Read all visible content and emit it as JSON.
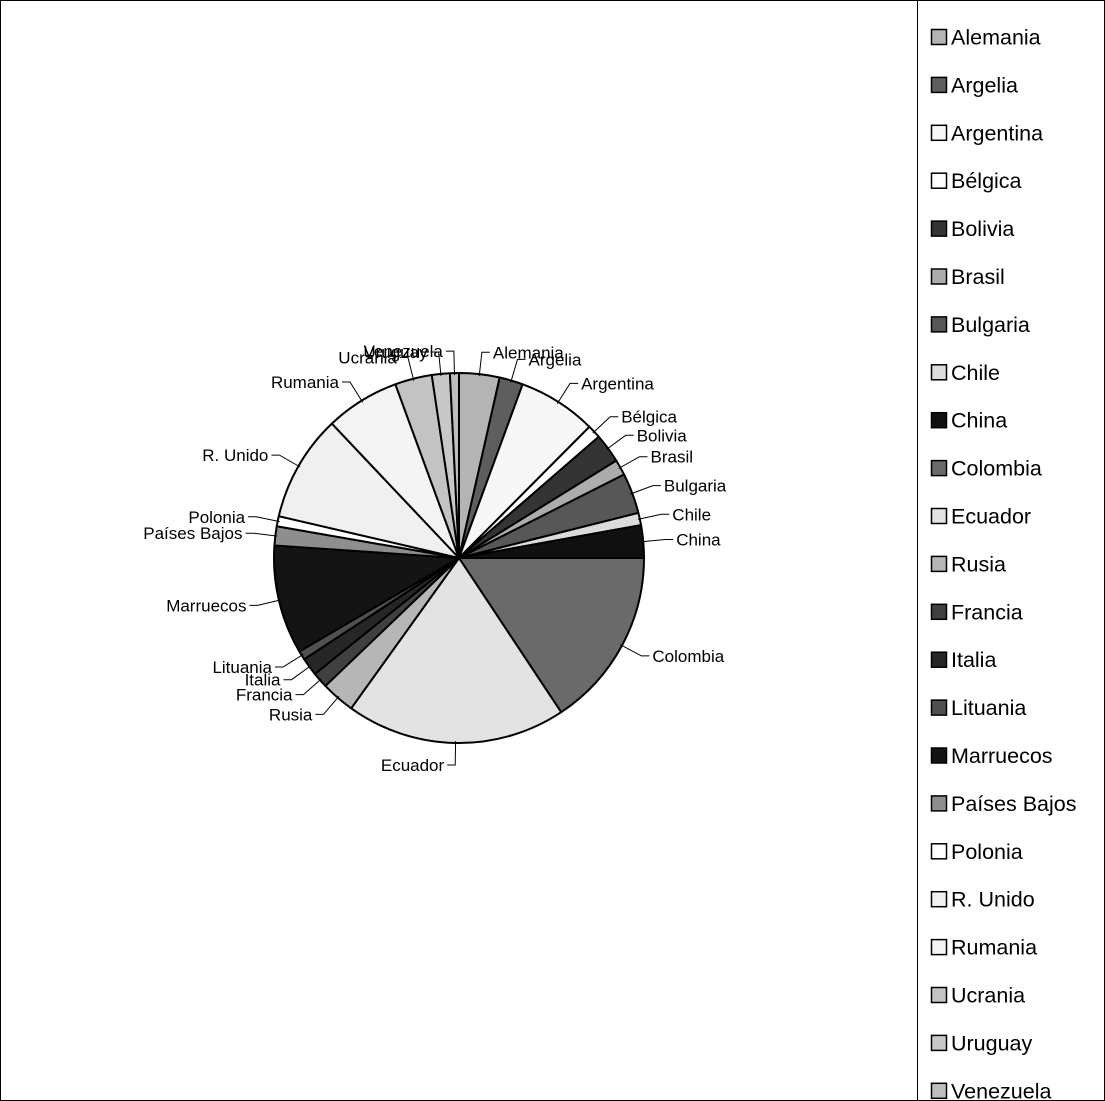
{
  "chart_data": {
    "type": "pie",
    "title": "",
    "start_angle_deg": 0,
    "direction": "clockwise",
    "slices": [
      {
        "name": "Alemania",
        "value": 3.6,
        "color": "#b4b4b4"
      },
      {
        "name": "Argelia",
        "value": 2.1,
        "color": "#5e5e5e"
      },
      {
        "name": "Argentina",
        "value": 7.0,
        "color": "#f7f7f7"
      },
      {
        "name": "Bélgica",
        "value": 1.2,
        "color": "#ffffff"
      },
      {
        "name": "Bolivia",
        "value": 2.6,
        "color": "#343434"
      },
      {
        "name": "Brasil",
        "value": 1.4,
        "color": "#acacac"
      },
      {
        "name": "Bulgaria",
        "value": 3.6,
        "color": "#575757"
      },
      {
        "name": "Chile",
        "value": 1.1,
        "color": "#dcdcdc"
      },
      {
        "name": "China",
        "value": 2.9,
        "color": "#101010"
      },
      {
        "name": "Colombia",
        "value": 16.0,
        "color": "#6a6a6a"
      },
      {
        "name": "Ecuador",
        "value": 19.6,
        "color": "#e3e3e3"
      },
      {
        "name": "Rusia",
        "value": 3.0,
        "color": "#b6b6b6"
      },
      {
        "name": "Francia",
        "value": 1.4,
        "color": "#404040"
      },
      {
        "name": "Italia",
        "value": 1.6,
        "color": "#262626"
      },
      {
        "name": "Lituania",
        "value": 0.8,
        "color": "#505050"
      },
      {
        "name": "Marruecos",
        "value": 9.7,
        "color": "#141414"
      },
      {
        "name": "Países Bajos",
        "value": 1.7,
        "color": "#8e8e8e"
      },
      {
        "name": "Polonia",
        "value": 0.9,
        "color": "#ffffff"
      },
      {
        "name": "R. Unido",
        "value": 9.5,
        "color": "#f0f0f0"
      },
      {
        "name": "Rumania",
        "value": 6.6,
        "color": "#f4f4f4"
      },
      {
        "name": "Ucrania",
        "value": 3.3,
        "color": "#c3c3c3"
      },
      {
        "name": "Uruguay",
        "value": 1.6,
        "color": "#c8c8c8"
      },
      {
        "name": "Venezuela",
        "value": 0.8,
        "color": "#bdbdbd"
      }
    ],
    "legend_position": "right",
    "labels": "outside with leader lines"
  }
}
